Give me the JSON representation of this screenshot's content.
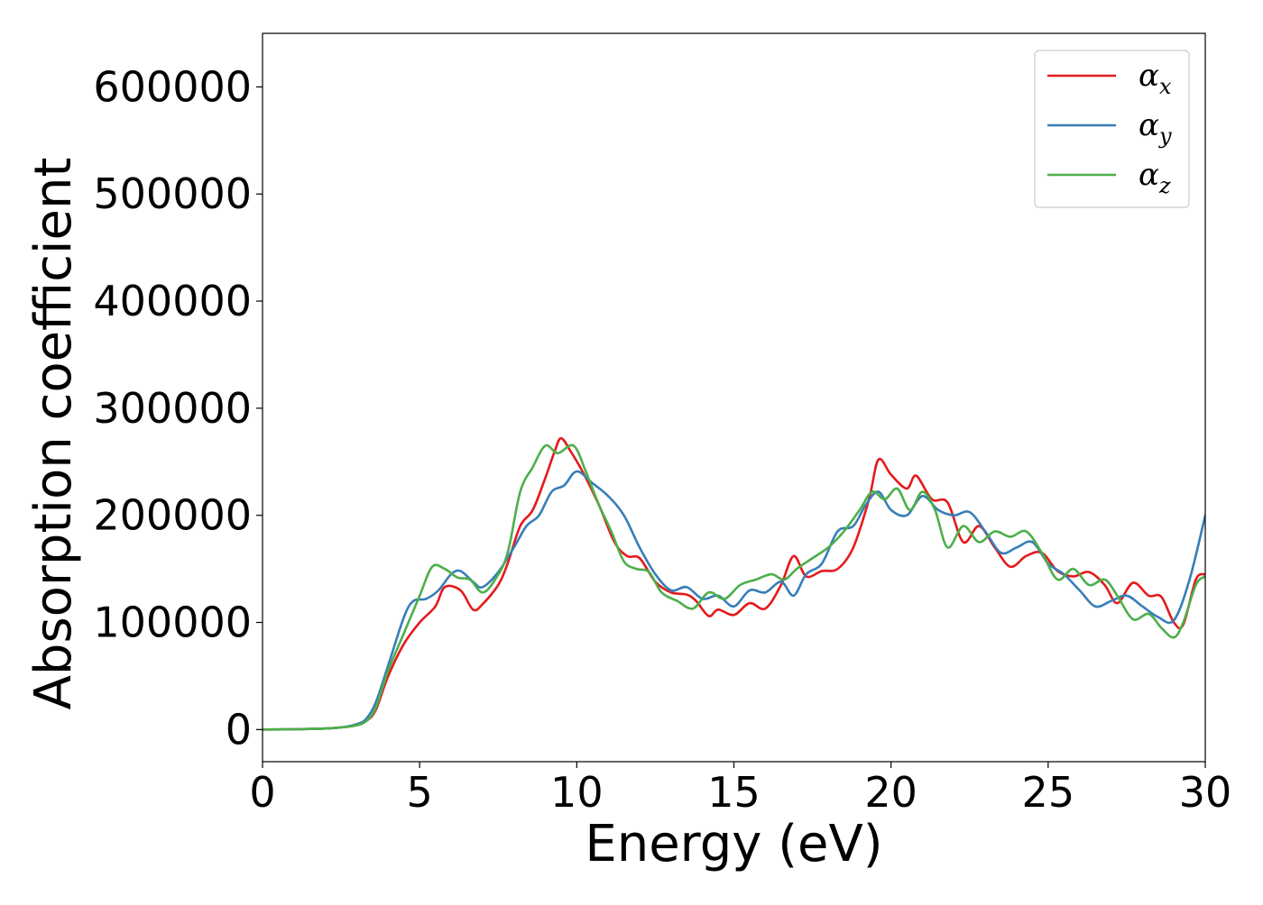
{
  "chart_data": {
    "type": "line",
    "title": "",
    "xlabel": "Energy (eV)",
    "ylabel": "Absorption coefficient",
    "xlim": [
      0,
      30
    ],
    "ylim": [
      -30000,
      650000
    ],
    "xticks": [
      0,
      5,
      10,
      15,
      20,
      25,
      30
    ],
    "xtick_labels": [
      "0",
      "5",
      "10",
      "15",
      "20",
      "25",
      "30"
    ],
    "yticks": [
      0,
      100000,
      200000,
      300000,
      400000,
      500000,
      600000
    ],
    "ytick_labels": [
      "0",
      "100000",
      "200000",
      "300000",
      "400000",
      "500000",
      "600000"
    ],
    "grid": false,
    "legend_position": "top-right",
    "series": [
      {
        "name": "αx",
        "legend_base": "α",
        "legend_sub": "x",
        "color": "#e41a1c",
        "x": [
          0,
          1,
          2,
          2.5,
          3,
          3.3,
          3.6,
          4,
          4.5,
          5,
          5.5,
          5.8,
          6.3,
          6.7,
          7.0,
          7.5,
          7.8,
          8.2,
          8.6,
          9.0,
          9.3,
          9.5,
          9.8,
          10.2,
          10.7,
          11.2,
          11.6,
          12.0,
          12.5,
          13.0,
          13.5,
          13.8,
          14.2,
          14.5,
          15.0,
          15.5,
          16.0,
          16.5,
          16.9,
          17.3,
          17.8,
          18.3,
          18.8,
          19.3,
          19.6,
          20.0,
          20.5,
          20.8,
          21.3,
          21.8,
          22.3,
          22.8,
          23.3,
          23.8,
          24.3,
          24.8,
          25.3,
          25.8,
          26.3,
          26.8,
          27.2,
          27.7,
          28.2,
          28.6,
          29.0,
          29.3,
          29.7,
          30.0
        ],
        "y": [
          0,
          300,
          1000,
          2000,
          4000,
          8000,
          18000,
          50000,
          80000,
          100000,
          115000,
          133000,
          130000,
          112000,
          117000,
          135000,
          155000,
          190000,
          205000,
          235000,
          260000,
          272000,
          260000,
          240000,
          210000,
          175000,
          162000,
          160000,
          138000,
          128000,
          126000,
          120000,
          106000,
          112000,
          107000,
          118000,
          113000,
          135000,
          162000,
          143000,
          148000,
          150000,
          170000,
          215000,
          252000,
          238000,
          225000,
          237000,
          215000,
          212000,
          175000,
          190000,
          170000,
          152000,
          162000,
          165000,
          148000,
          143000,
          147000,
          135000,
          118000,
          137000,
          125000,
          124000,
          100000,
          98000,
          140000,
          145000
        ]
      },
      {
        "name": "αy",
        "legend_base": "α",
        "legend_sub": "y",
        "color": "#377eb8",
        "x": [
          0,
          1,
          2,
          2.5,
          3,
          3.3,
          3.6,
          4,
          4.5,
          4.8,
          5.2,
          5.6,
          6.0,
          6.3,
          6.7,
          7.0,
          7.5,
          8.0,
          8.4,
          8.8,
          9.2,
          9.6,
          10.0,
          10.5,
          11.0,
          11.5,
          12.0,
          12.5,
          13.0,
          13.5,
          14.0,
          14.5,
          15.0,
          15.5,
          16.0,
          16.5,
          16.9,
          17.3,
          17.8,
          18.3,
          18.8,
          19.2,
          19.6,
          20.0,
          20.5,
          21.0,
          21.5,
          22.0,
          22.5,
          23.0,
          23.5,
          24.0,
          24.5,
          25.0,
          25.5,
          26.0,
          26.5,
          27.0,
          27.5,
          28.0,
          28.5,
          29.0,
          29.5,
          30.0
        ],
        "y": [
          0,
          300,
          1000,
          2000,
          5000,
          10000,
          25000,
          60000,
          105000,
          120000,
          122000,
          130000,
          145000,
          148000,
          138000,
          133000,
          147000,
          170000,
          190000,
          200000,
          222000,
          228000,
          241000,
          230000,
          218000,
          200000,
          170000,
          145000,
          130000,
          133000,
          122000,
          125000,
          115000,
          130000,
          128000,
          138000,
          125000,
          145000,
          155000,
          185000,
          190000,
          210000,
          222000,
          205000,
          200000,
          218000,
          205000,
          200000,
          203000,
          185000,
          165000,
          170000,
          175000,
          155000,
          145000,
          130000,
          115000,
          120000,
          125000,
          115000,
          105000,
          102000,
          140000,
          200000
        ]
      },
      {
        "name": "αz",
        "legend_base": "α",
        "legend_sub": "z",
        "color": "#4daf4a",
        "x": [
          0,
          1,
          2,
          2.5,
          3,
          3.3,
          3.6,
          4,
          4.5,
          5.0,
          5.4,
          5.8,
          6.2,
          6.6,
          7.0,
          7.4,
          7.8,
          8.2,
          8.6,
          9.0,
          9.4,
          9.9,
          10.3,
          10.7,
          11.1,
          11.5,
          11.9,
          12.3,
          12.7,
          13.2,
          13.7,
          14.2,
          14.7,
          15.2,
          15.7,
          16.2,
          16.6,
          17.0,
          17.5,
          18.0,
          18.5,
          19.0,
          19.4,
          19.8,
          20.2,
          20.6,
          21.0,
          21.4,
          21.8,
          22.3,
          22.8,
          23.3,
          23.8,
          24.3,
          24.8,
          25.3,
          25.8,
          26.3,
          26.8,
          27.2,
          27.7,
          28.2,
          28.6,
          29.0,
          29.3,
          29.7,
          30.0
        ],
        "y": [
          0,
          300,
          1000,
          2000,
          4000,
          8000,
          20000,
          55000,
          90000,
          125000,
          152000,
          150000,
          142000,
          140000,
          128000,
          140000,
          165000,
          222000,
          245000,
          265000,
          258000,
          265000,
          240000,
          210000,
          185000,
          157000,
          150000,
          147000,
          128000,
          120000,
          113000,
          128000,
          122000,
          135000,
          140000,
          145000,
          140000,
          150000,
          160000,
          170000,
          185000,
          205000,
          222000,
          215000,
          225000,
          205000,
          222000,
          205000,
          170000,
          190000,
          175000,
          185000,
          180000,
          185000,
          165000,
          140000,
          150000,
          135000,
          140000,
          125000,
          103000,
          108000,
          95000,
          86000,
          100000,
          135000,
          143000
        ]
      }
    ]
  }
}
